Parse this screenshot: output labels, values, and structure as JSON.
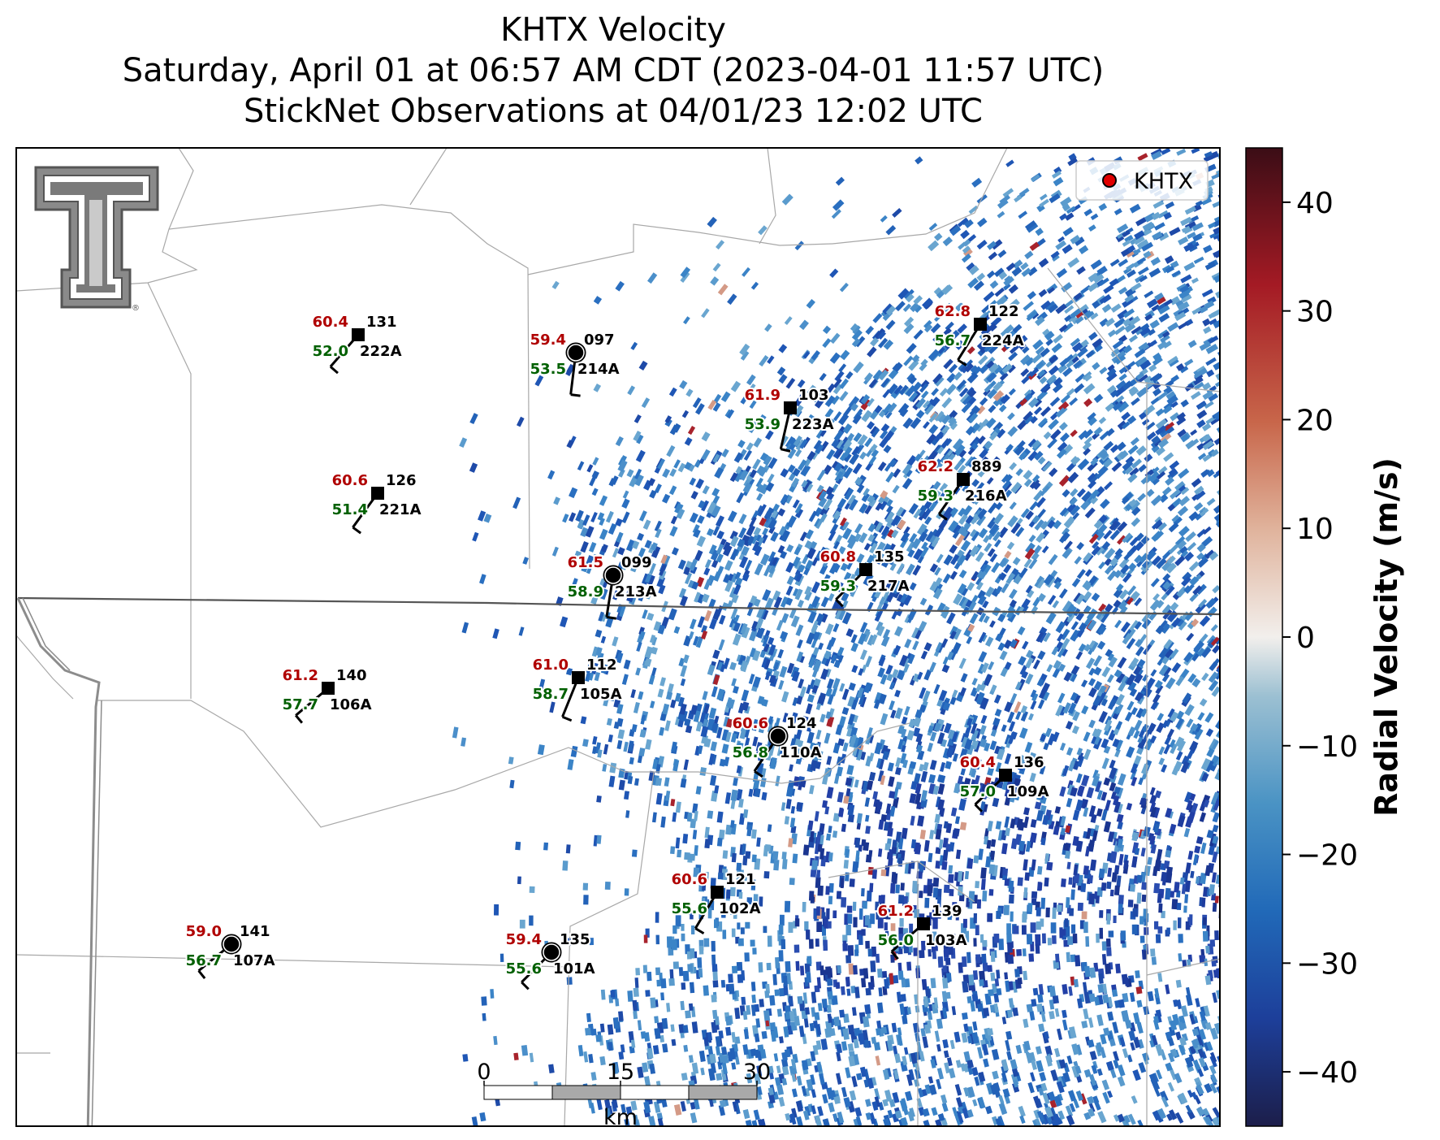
{
  "title": {
    "line1": "KHTX Velocity",
    "line2": "Saturday, April 01 at 06:57 AM CDT (2023-04-01 11:57 UTC)",
    "line3": "StickNet Observations at 04/01/23 12:02 UTC"
  },
  "legend": {
    "label": "KHTX",
    "marker_color": "#e00000"
  },
  "logo": {
    "name": "Texas Tech double-T logo",
    "mark": "®"
  },
  "colorbar": {
    "label": "Radial Velocity (m/s)",
    "range": [
      -45,
      45
    ],
    "ticks": [
      "40",
      "30",
      "20",
      "10",
      "0",
      "−10",
      "−20",
      "−30",
      "−40"
    ],
    "tick_values": [
      40,
      30,
      20,
      10,
      0,
      -10,
      -20,
      -30,
      -40
    ],
    "colors": [
      "#1c1e4a",
      "#1d3f9a",
      "#2169b8",
      "#4a93c4",
      "#9cc0d2",
      "#f2efec",
      "#e0b39c",
      "#c8664a",
      "#a41a24",
      "#3b0d16"
    ]
  },
  "scale_bar": {
    "labels": [
      "0",
      "15",
      "30"
    ],
    "unit": "km"
  },
  "stations": [
    {
      "id": "222A",
      "temp": "60.4",
      "dewpoint": "52.0",
      "direction": "131",
      "marker": "square"
    },
    {
      "id": "214A",
      "temp": "59.4",
      "dewpoint": "53.5",
      "direction": "097",
      "marker": "circle"
    },
    {
      "id": "224A",
      "temp": "62.8",
      "dewpoint": "56.7",
      "direction": "122",
      "marker": "square"
    },
    {
      "id": "223A",
      "temp": "61.9",
      "dewpoint": "53.9",
      "direction": "103",
      "marker": "square"
    },
    {
      "id": "216A",
      "temp": "62.2",
      "dewpoint": "59.3",
      "direction": "889",
      "marker": "square"
    },
    {
      "id": "221A",
      "temp": "60.6",
      "dewpoint": "51.4",
      "direction": "126",
      "marker": "square"
    },
    {
      "id": "213A",
      "temp": "61.5",
      "dewpoint": "58.9",
      "direction": "099",
      "marker": "circle"
    },
    {
      "id": "217A",
      "temp": "60.8",
      "dewpoint": "59.3",
      "direction": "135",
      "marker": "square"
    },
    {
      "id": "106A",
      "temp": "61.2",
      "dewpoint": "57.7",
      "direction": "140",
      "marker": "square"
    },
    {
      "id": "105A",
      "temp": "61.0",
      "dewpoint": "58.7",
      "direction": "112",
      "marker": "square"
    },
    {
      "id": "110A",
      "temp": "60.6",
      "dewpoint": "56.8",
      "direction": "124",
      "marker": "circle"
    },
    {
      "id": "109A",
      "temp": "60.4",
      "dewpoint": "57.0",
      "direction": "136",
      "marker": "square"
    },
    {
      "id": "102A",
      "temp": "60.6",
      "dewpoint": "55.6",
      "direction": "121",
      "marker": "square"
    },
    {
      "id": "103A",
      "temp": "61.2",
      "dewpoint": "56.0",
      "direction": "139",
      "marker": "square"
    },
    {
      "id": "107A",
      "temp": "59.0",
      "dewpoint": "56.7",
      "direction": "141",
      "marker": "circle"
    },
    {
      "id": "101A",
      "temp": "59.4",
      "dewpoint": "55.6",
      "direction": "135",
      "marker": "circle"
    }
  ]
}
